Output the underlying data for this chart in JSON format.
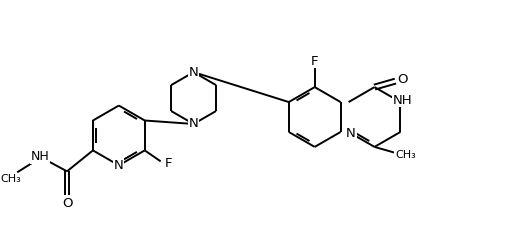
{
  "background_color": "#ffffff",
  "line_color": "#000000",
  "line_width": 1.4,
  "font_size": 9.5,
  "xlim": [
    0,
    10.64
  ],
  "ylim": [
    0,
    4.76
  ]
}
